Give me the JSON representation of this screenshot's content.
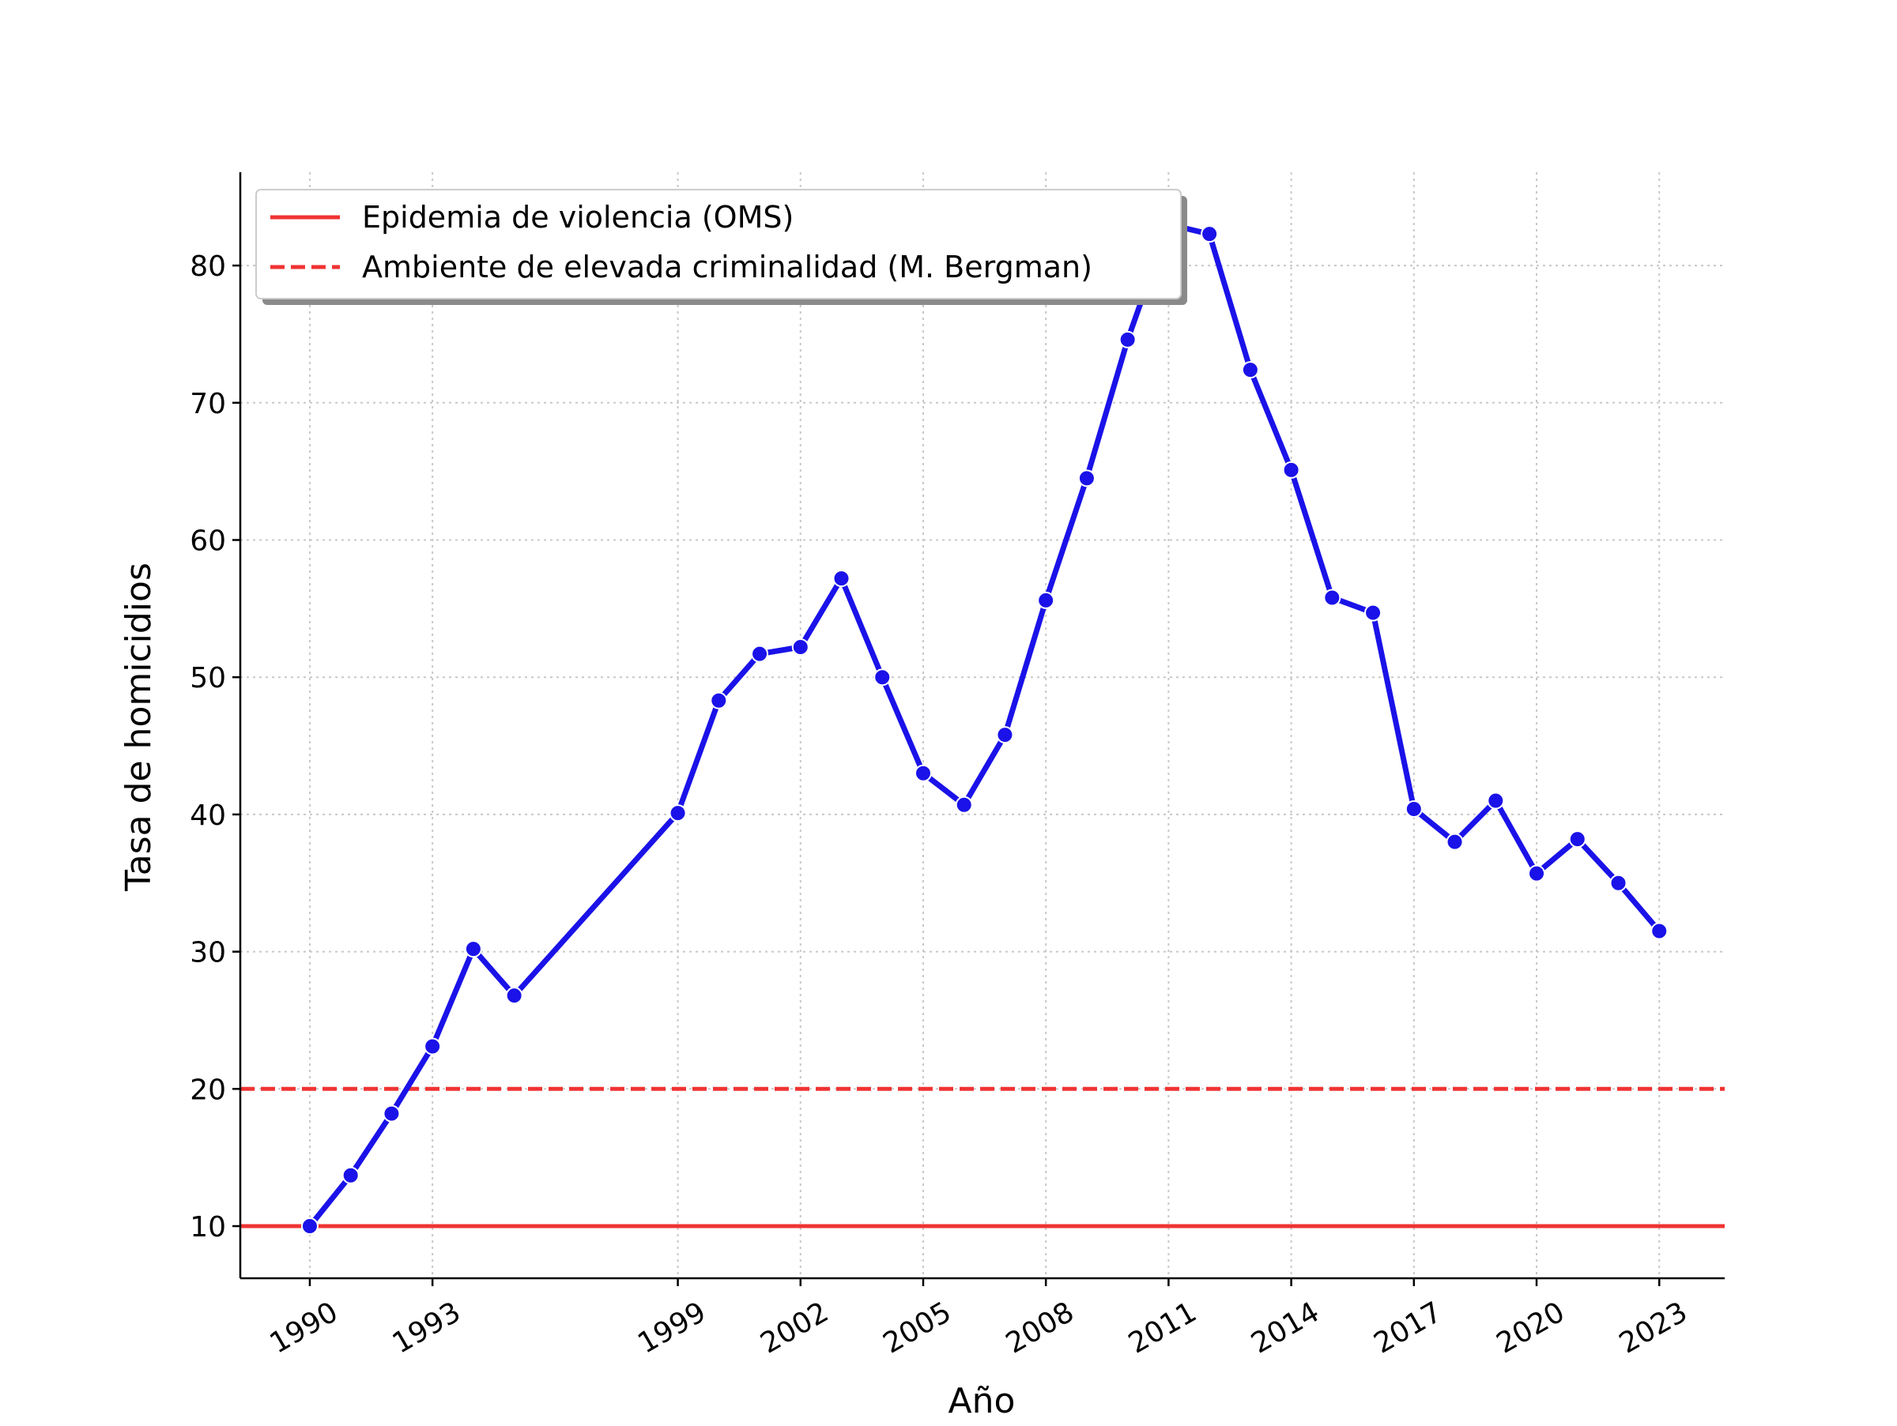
{
  "chart_data": {
    "type": "line",
    "xlabel": "Año",
    "ylabel": "Tasa de homicidios",
    "xlim": [
      1988.3,
      2024.6
    ],
    "ylim": [
      6.2,
      86.8
    ],
    "x_ticks": [
      1990,
      1993,
      1999,
      2002,
      2005,
      2008,
      2011,
      2014,
      2017,
      2020,
      2023
    ],
    "y_ticks": [
      10,
      20,
      30,
      40,
      50,
      60,
      70,
      80
    ],
    "grid": true,
    "legend_position": "top-left",
    "series": [
      {
        "name": "",
        "color": "#1a12e8",
        "x": [
          1990,
          1991,
          1992,
          1993,
          1994,
          1995,
          1999,
          2000,
          2001,
          2002,
          2003,
          2004,
          2005,
          2006,
          2007,
          2008,
          2009,
          2010,
          2011,
          2012,
          2013,
          2014,
          2015,
          2016,
          2017,
          2018,
          2019,
          2020,
          2021,
          2022,
          2023
        ],
        "y": [
          10.0,
          13.7,
          18.2,
          23.1,
          30.2,
          26.8,
          40.1,
          48.3,
          51.7,
          52.2,
          57.2,
          50.0,
          43.0,
          40.7,
          45.8,
          55.6,
          64.5,
          74.6,
          83.0,
          82.3,
          72.4,
          65.1,
          55.8,
          54.7,
          40.4,
          38.0,
          41.0,
          35.7,
          38.2,
          35.0,
          31.5
        ]
      }
    ],
    "reference_lines": [
      {
        "name": "Epidemia de violencia (OMS)",
        "y": 10,
        "style": "solid",
        "color": "#f03333"
      },
      {
        "name": "Ambiente de elevada criminalidad (M. Bergman)",
        "y": 20,
        "style": "dashed",
        "color": "#f03333"
      }
    ]
  }
}
